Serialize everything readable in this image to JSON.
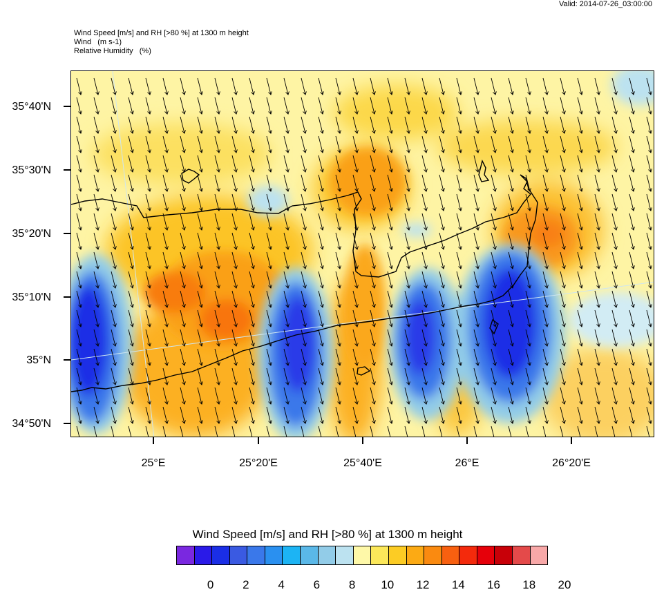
{
  "valid_time": "Valid: 2014-07-26_03:00:00",
  "header": {
    "line1": "Wind Speed [m/s] and RH [>80 %] at 1300 m height",
    "line2": "Wind   (m s-1)",
    "line3": "Relative Humidity   (%)"
  },
  "map": {
    "lat_labels": [
      "35°40'N",
      "35°30'N",
      "35°20'N",
      "35°10'N",
      "35°N",
      "34°50'N"
    ],
    "lon_labels": [
      "25°E",
      "25°20'E",
      "25°40'E",
      "26°E",
      "26°20'E"
    ],
    "wind_direction": "north-northwest"
  },
  "colorbar": {
    "title": "Wind Speed [m/s] and RH [>80 %] at 1300 m height",
    "labels": [
      "0",
      "2",
      "4",
      "6",
      "8",
      "10",
      "12",
      "14",
      "16",
      "18",
      "20"
    ],
    "colors": [
      "#7a28e0",
      "#2a1ae8",
      "#1a2ee6",
      "#3a5ae2",
      "#3a78ea",
      "#2a90f0",
      "#1cb4f4",
      "#5ab8e8",
      "#92cce8",
      "#bce2f0",
      "#fef8a8",
      "#fce85a",
      "#fccc24",
      "#fcaa14",
      "#fa8a10",
      "#f86010",
      "#f42a0c",
      "#e6000a",
      "#c80008",
      "#e44a4a",
      "#f8a8a8"
    ]
  }
}
